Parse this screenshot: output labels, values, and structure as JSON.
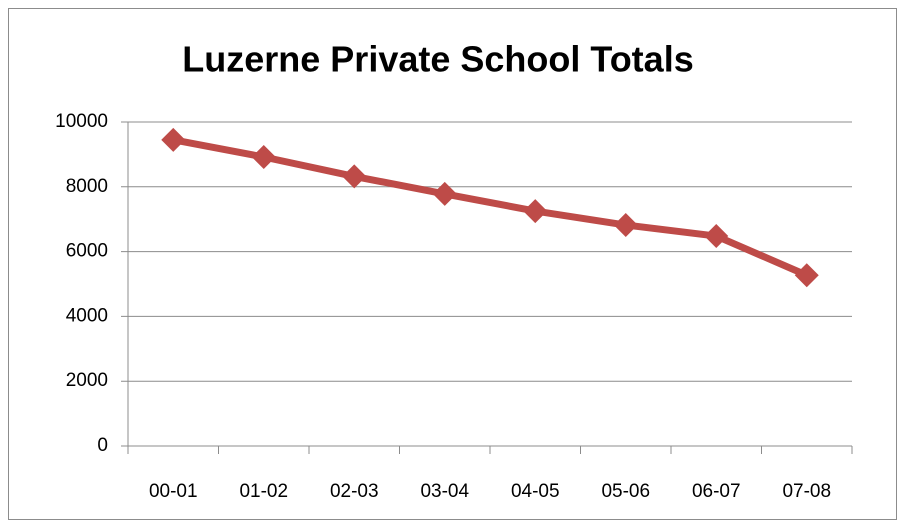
{
  "chart_data": {
    "type": "line",
    "title": "Luzerne Private School Totals",
    "categories": [
      "00-01",
      "01-02",
      "02-03",
      "03-04",
      "04-05",
      "05-06",
      "06-07",
      "07-08"
    ],
    "series": [
      {
        "name": "Totals",
        "color": "#be4b48",
        "values": [
          9450,
          8920,
          8320,
          7780,
          7250,
          6820,
          6480,
          5270
        ]
      }
    ],
    "ylim": [
      0,
      10000
    ],
    "yticks": [
      0,
      2000,
      4000,
      6000,
      8000,
      10000
    ],
    "grid": true
  }
}
